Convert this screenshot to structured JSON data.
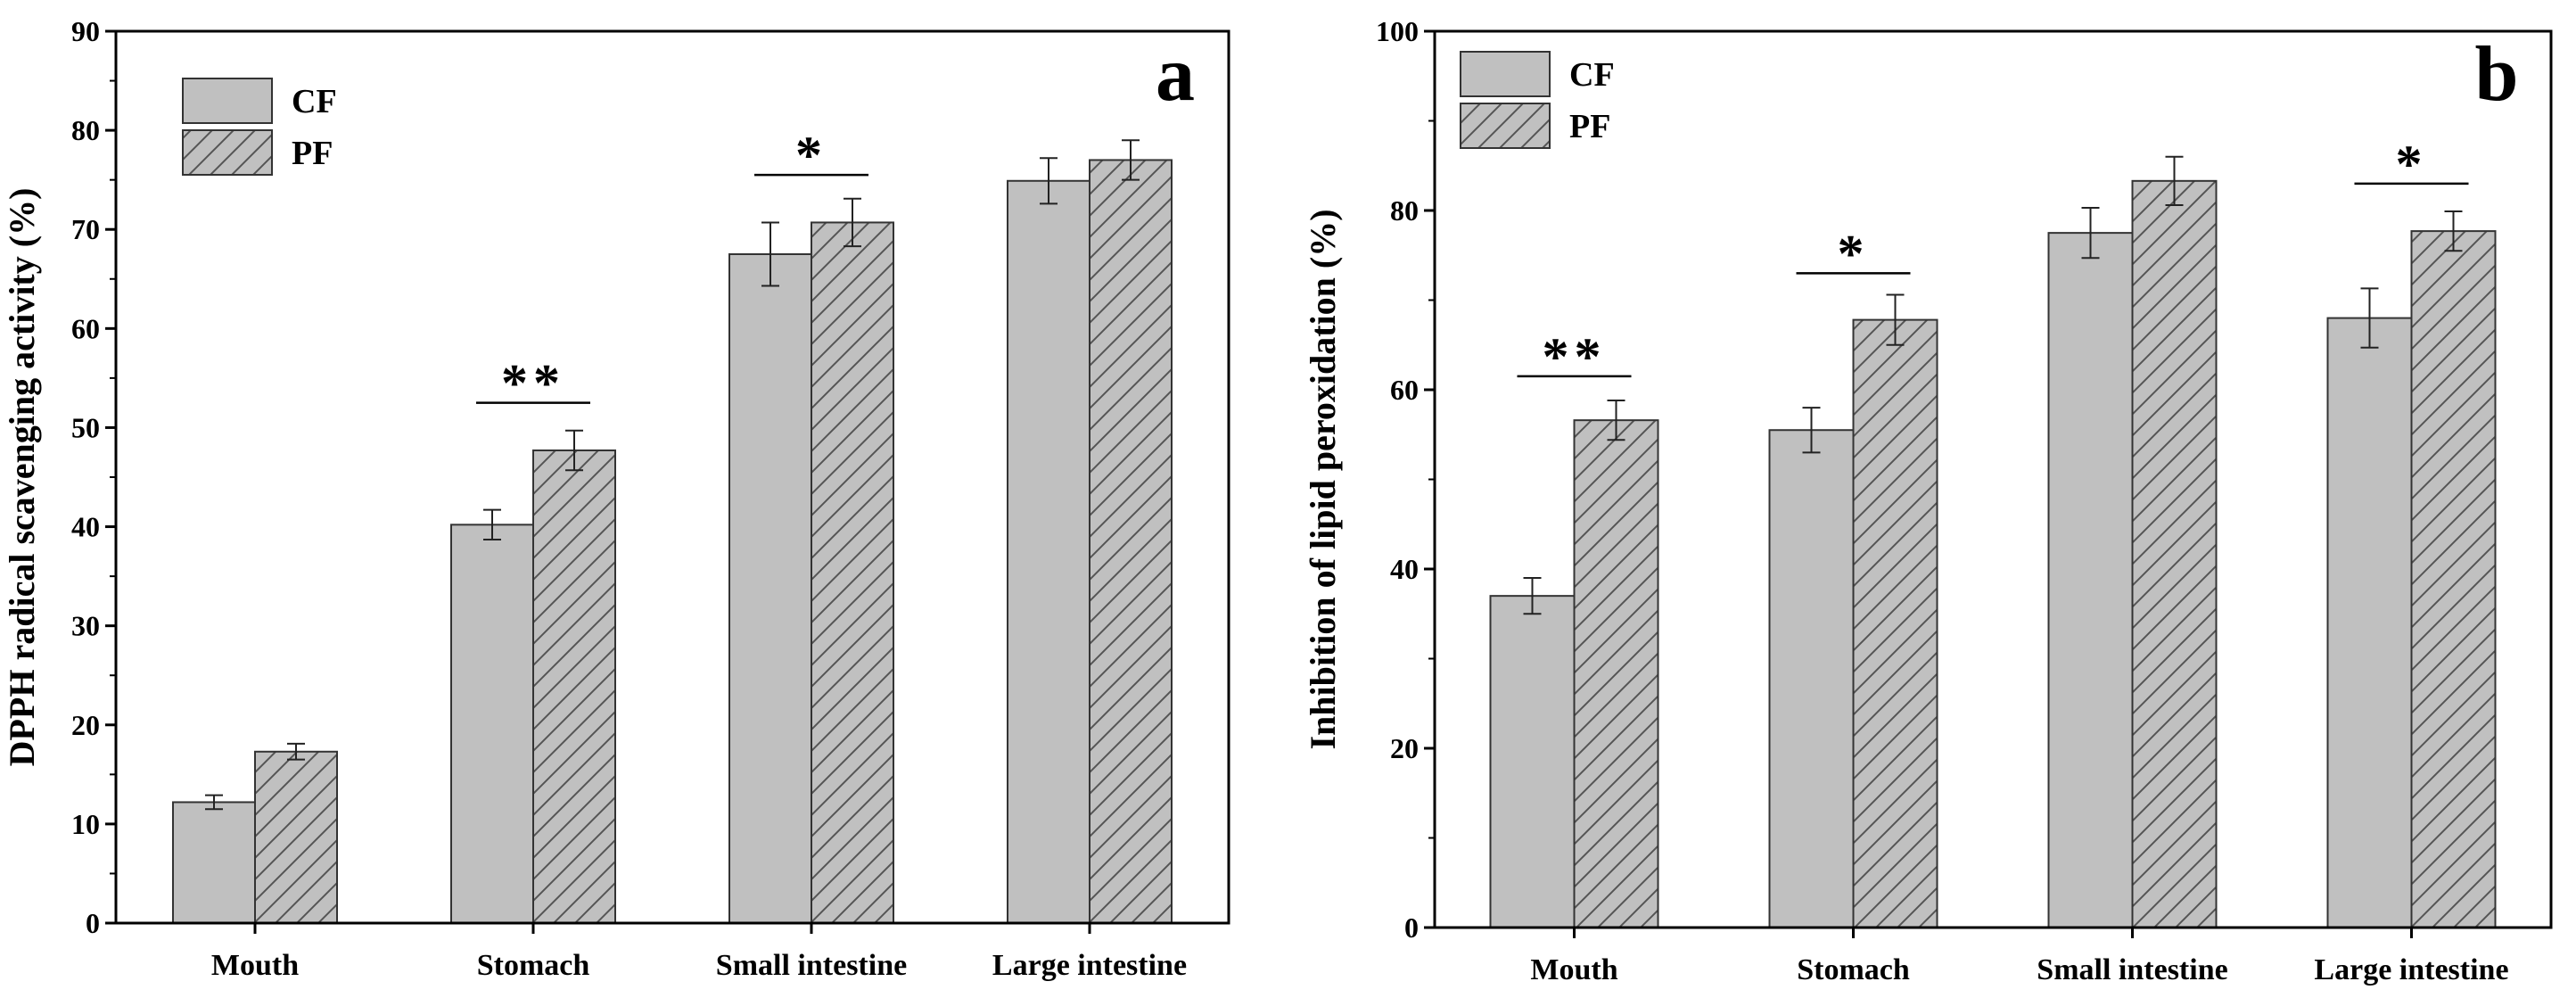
{
  "chart_data": [
    {
      "type": "bar",
      "panel_label": "a",
      "ylabel": "DPPH radical scavenging activity (%)",
      "ylim": [
        0,
        90
      ],
      "yticks": [
        "0",
        "10",
        "20",
        "30",
        "40",
        "50",
        "60",
        "70",
        "80",
        "90"
      ],
      "categories": [
        "Mouth",
        "Stomach",
        "Small intestine",
        "Large intestine"
      ],
      "series": [
        {
          "name": "CF",
          "values": [
            12.2,
            40.2,
            67.5,
            74.9
          ],
          "errors": [
            0.7,
            1.5,
            3.2,
            2.3
          ],
          "pattern": "solid",
          "color": "#c0c0c0"
        },
        {
          "name": "PF",
          "values": [
            17.3,
            47.7,
            70.7,
            77.0
          ],
          "errors": [
            0.8,
            2.0,
            2.4,
            2.0
          ],
          "pattern": "hatched",
          "color": "#c0c0c0"
        }
      ],
      "significance": [
        {
          "category": "Stomach",
          "label": "**",
          "y": 52.5
        },
        {
          "category": "Small intestine",
          "label": "*",
          "y": 75.5
        }
      ],
      "legend_position": "top-left"
    },
    {
      "type": "bar",
      "panel_label": "b",
      "ylabel": "Inhibition of lipid peroxidation (%)",
      "ylim": [
        0,
        100
      ],
      "yticks": [
        "0",
        "20",
        "40",
        "60",
        "80",
        "100"
      ],
      "categories": [
        "Mouth",
        "Stomach",
        "Small intestine",
        "Large intestine"
      ],
      "series": [
        {
          "name": "CF",
          "values": [
            37.0,
            55.5,
            77.5,
            68.0
          ],
          "errors": [
            2.0,
            2.5,
            2.8,
            3.3
          ],
          "pattern": "solid",
          "color": "#c0c0c0"
        },
        {
          "name": "PF",
          "values": [
            56.6,
            67.8,
            83.3,
            77.7
          ],
          "errors": [
            2.2,
            2.8,
            2.7,
            2.2
          ],
          "pattern": "hatched",
          "color": "#c0c0c0"
        }
      ],
      "significance": [
        {
          "category": "Mouth",
          "label": "**",
          "y": 61.5
        },
        {
          "category": "Stomach",
          "label": "*",
          "y": 73.0
        },
        {
          "category": "Large intestine",
          "label": "*",
          "y": 83.0
        }
      ],
      "legend_position": "top-left"
    }
  ]
}
